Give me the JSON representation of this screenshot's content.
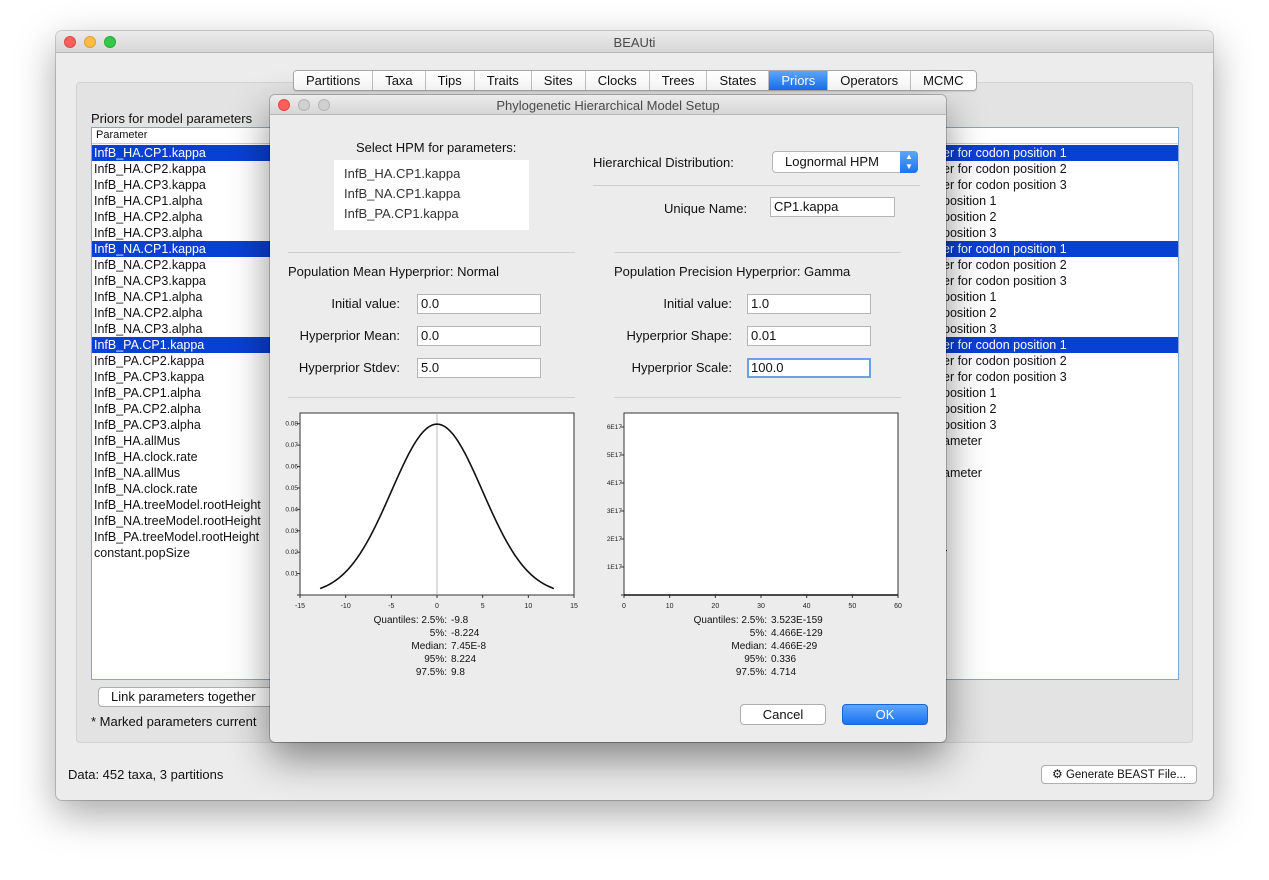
{
  "window": {
    "title": "BEAUti"
  },
  "tabs": [
    "Partitions",
    "Taxa",
    "Tips",
    "Traits",
    "Sites",
    "Clocks",
    "Trees",
    "States",
    "Priors",
    "Operators",
    "MCMC"
  ],
  "active_tab": "Priors",
  "priors": {
    "section_label": "Priors for model parameters",
    "column_header": "Parameter",
    "rows": [
      {
        "name": "InfB_HA.CP1.kappa",
        "desc": "er for codon position 1",
        "selected": true
      },
      {
        "name": "InfB_HA.CP2.kappa",
        "desc": "er for codon position 2"
      },
      {
        "name": "InfB_HA.CP3.kappa",
        "desc": "er for codon position 3"
      },
      {
        "name": "InfB_HA.CP1.alpha",
        "desc": "position 1"
      },
      {
        "name": "InfB_HA.CP2.alpha",
        "desc": "position 2"
      },
      {
        "name": "InfB_HA.CP3.alpha",
        "desc": "position 3"
      },
      {
        "name": "InfB_NA.CP1.kappa",
        "desc": "er for codon position 1",
        "selected": true
      },
      {
        "name": "InfB_NA.CP2.kappa",
        "desc": "er for codon position 2"
      },
      {
        "name": "InfB_NA.CP3.kappa",
        "desc": "er for codon position 3"
      },
      {
        "name": "InfB_NA.CP1.alpha",
        "desc": "position 1"
      },
      {
        "name": "InfB_NA.CP2.alpha",
        "desc": "position 2"
      },
      {
        "name": "InfB_NA.CP3.alpha",
        "desc": "position 3"
      },
      {
        "name": "InfB_PA.CP1.kappa",
        "desc": "er for codon position 1",
        "selected": true
      },
      {
        "name": "InfB_PA.CP2.kappa",
        "desc": "er for codon position 2"
      },
      {
        "name": "InfB_PA.CP3.kappa",
        "desc": "er for codon position 3"
      },
      {
        "name": "InfB_PA.CP1.alpha",
        "desc": "position 1"
      },
      {
        "name": "InfB_PA.CP2.alpha",
        "desc": "position 2"
      },
      {
        "name": "InfB_PA.CP3.alpha",
        "desc": "position 3"
      },
      {
        "name": "InfB_HA.allMus",
        "desc": "ameter"
      },
      {
        "name": "InfB_HA.clock.rate",
        "desc": ""
      },
      {
        "name": "InfB_NA.allMus",
        "desc": "ameter"
      },
      {
        "name": "InfB_NA.clock.rate",
        "desc": ""
      },
      {
        "name": "InfB_HA.treeModel.rootHeight",
        "desc": ""
      },
      {
        "name": "InfB_NA.treeModel.rootHeight",
        "desc": ""
      },
      {
        "name": "InfB_PA.treeModel.rootHeight",
        "desc": ""
      },
      {
        "name": "constant.popSize",
        "desc": "r"
      }
    ],
    "link_button": "Link parameters together",
    "marked_note": "* Marked parameters current"
  },
  "status": {
    "data": "Data: 452 taxa, 3 partitions",
    "generate_button": "Generate BEAST File..."
  },
  "dialog": {
    "title": "Phylogenetic Hierarchical Model Setup",
    "select_label": "Select HPM for parameters:",
    "hpm_params": [
      "InfB_HA.CP1.kappa",
      "InfB_NA.CP1.kappa",
      "InfB_PA.CP1.kappa"
    ],
    "dist_label": "Hierarchical Distribution:",
    "dist_value": "Lognormal HPM",
    "unique_label": "Unique Name:",
    "unique_value": "CP1.kappa",
    "mean_title": "Population Mean Hyperprior: Normal",
    "prec_title": "Population Precision Hyperprior: Gamma",
    "mean_fields": [
      {
        "label": "Initial value:",
        "value": "0.0"
      },
      {
        "label": "Hyperprior Mean:",
        "value": "0.0"
      },
      {
        "label": "Hyperprior Stdev:",
        "value": "5.0"
      }
    ],
    "prec_fields": [
      {
        "label": "Initial value:",
        "value": "1.0"
      },
      {
        "label": "Hyperprior Shape:",
        "value": "0.01"
      },
      {
        "label": "Hyperprior Scale:",
        "value": "100.0"
      }
    ],
    "cancel": "Cancel",
    "ok": "OK"
  },
  "chart_data": [
    {
      "type": "line",
      "title": "",
      "distribution": "Normal",
      "mean": 0.0,
      "stdev": 5.0,
      "xlim": [
        -15,
        15
      ],
      "ylim": [
        0,
        0.085
      ],
      "x_ticks": [
        "-15",
        "-10",
        "-5",
        "0",
        "5",
        "10",
        "15"
      ],
      "y_ticks": [
        "0",
        "0.01",
        "0.02",
        "0.03",
        "0.04",
        "0.05",
        "0.06",
        "0.07",
        "0.08"
      ],
      "quantiles": [
        {
          "label": "Quantiles: 2.5%:",
          "value": "-9.8"
        },
        {
          "label": "5%:",
          "value": "-8.224"
        },
        {
          "label": "Median:",
          "value": "7.45E-8"
        },
        {
          "label": "95%:",
          "value": "8.224"
        },
        {
          "label": "97.5%:",
          "value": "9.8"
        }
      ]
    },
    {
      "type": "line",
      "title": "",
      "distribution": "Gamma",
      "shape": 0.01,
      "scale": 100.0,
      "xlim": [
        0,
        60
      ],
      "ylim": [
        0,
        6.5e+17
      ],
      "x_ticks": [
        "0",
        "10",
        "20",
        "30",
        "40",
        "50",
        "60"
      ],
      "y_ticks": [
        "0",
        "1E17",
        "2E17",
        "3E17",
        "4E17",
        "5E17",
        "6E17"
      ],
      "quantiles": [
        {
          "label": "Quantiles: 2.5%:",
          "value": "3.523E-159"
        },
        {
          "label": "5%:",
          "value": "4.466E-129"
        },
        {
          "label": "Median:",
          "value": "4.466E-29"
        },
        {
          "label": "95%:",
          "value": "0.336"
        },
        {
          "label": "97.5%:",
          "value": "4.714"
        }
      ]
    }
  ]
}
